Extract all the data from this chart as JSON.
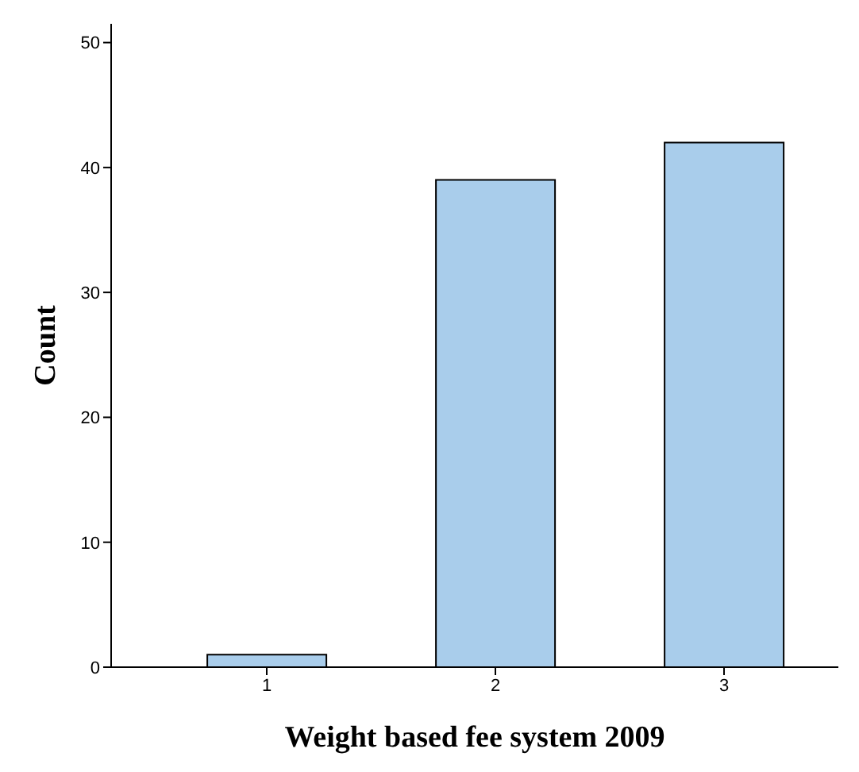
{
  "chart_data": {
    "type": "bar",
    "xlabel": "Weight based fee system 2009",
    "ylabel": "Count",
    "categories": [
      "1",
      "2",
      "3"
    ],
    "values": [
      1,
      39,
      42
    ],
    "color": "#a9cdeb",
    "ylim": [
      0,
      51.5
    ],
    "yticks": [
      0,
      10,
      20,
      30,
      40,
      50
    ],
    "grid": false,
    "legend": false
  }
}
